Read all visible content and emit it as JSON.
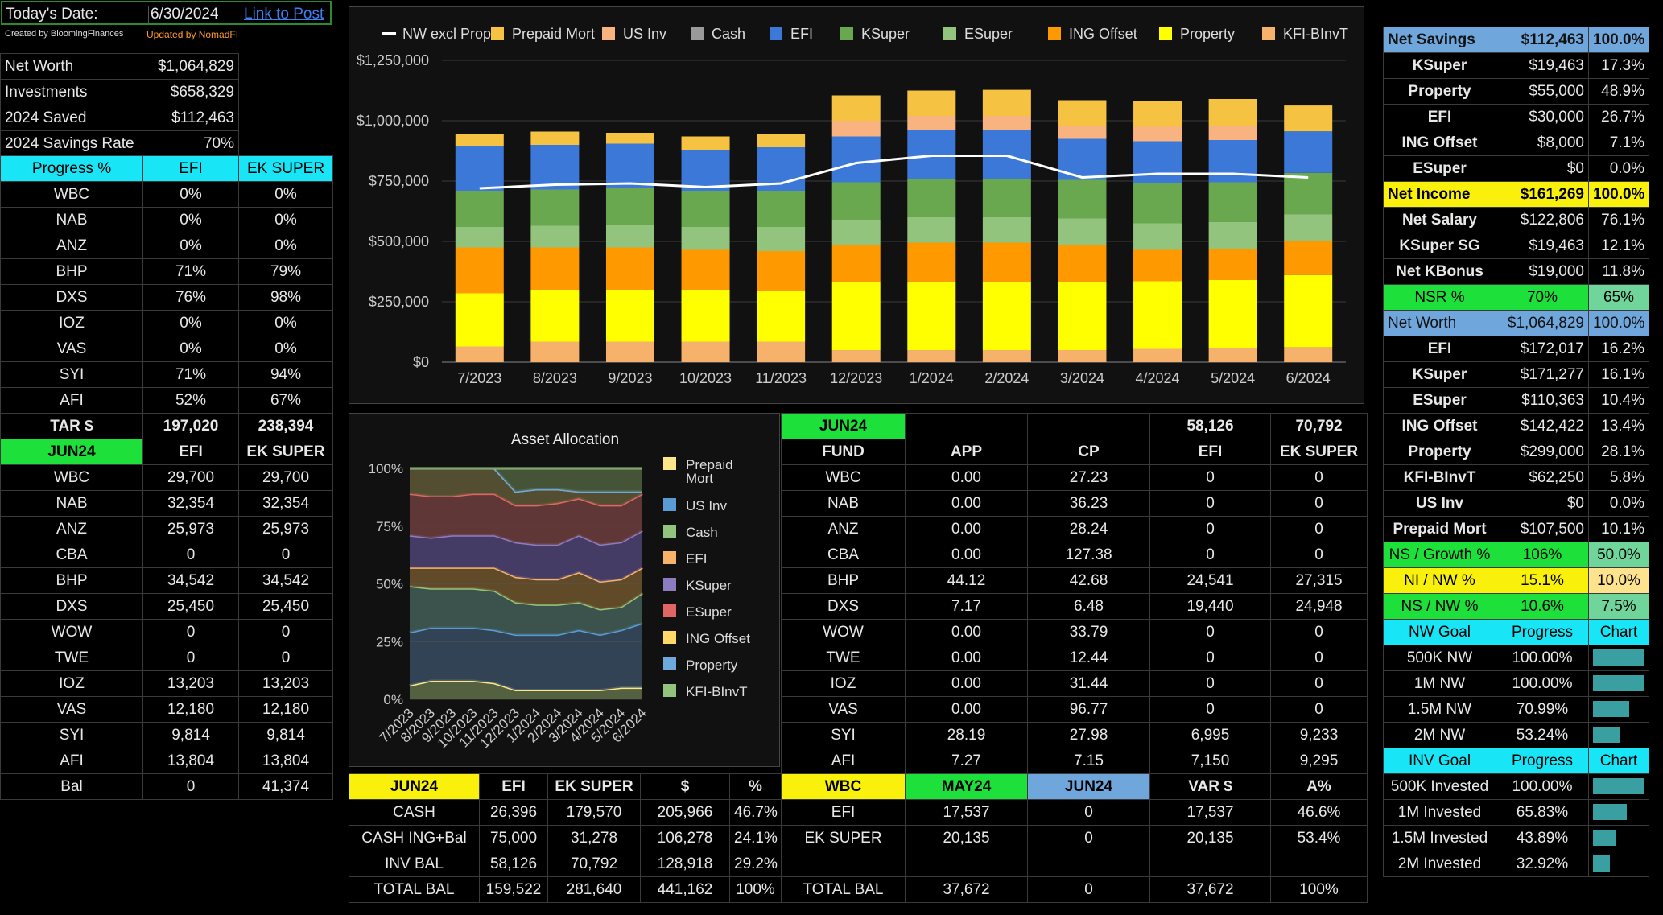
{
  "header": {
    "date_label": "Today's Date:",
    "date_value": "6/30/2024",
    "link": "Link to Post",
    "credit1": "Created by BloomingFinances",
    "credit2": "Updated by NomadFI"
  },
  "summary": [
    {
      "label": "Net Worth",
      "value": "$1,064,829"
    },
    {
      "label": "Investments",
      "value": "$658,329"
    },
    {
      "label": "2024 Saved",
      "value": "$112,463"
    },
    {
      "label": "2024 Savings Rate",
      "value": "70%"
    }
  ],
  "progress": {
    "headers": [
      "Progress %",
      "EFI",
      "EK SUPER"
    ],
    "rows": [
      [
        "WBC",
        "0%",
        "0%"
      ],
      [
        "NAB",
        "0%",
        "0%"
      ],
      [
        "ANZ",
        "0%",
        "0%"
      ],
      [
        "BHP",
        "71%",
        "79%"
      ],
      [
        "DXS",
        "76%",
        "98%"
      ],
      [
        "IOZ",
        "0%",
        "0%"
      ],
      [
        "VAS",
        "0%",
        "0%"
      ],
      [
        "SYI",
        "71%",
        "94%"
      ],
      [
        "AFI",
        "52%",
        "67%"
      ]
    ],
    "tar": [
      "TAR $",
      "197,020",
      "238,394"
    ]
  },
  "holdings": {
    "headers": [
      "JUN24",
      "EFI",
      "EK SUPER"
    ],
    "rows": [
      [
        "WBC",
        "29,700",
        "29,700"
      ],
      [
        "NAB",
        "32,354",
        "32,354"
      ],
      [
        "ANZ",
        "25,973",
        "25,973"
      ],
      [
        "CBA",
        "0",
        "0"
      ],
      [
        "BHP",
        "34,542",
        "34,542"
      ],
      [
        "DXS",
        "25,450",
        "25,450"
      ],
      [
        "WOW",
        "0",
        "0"
      ],
      [
        "TWE",
        "0",
        "0"
      ],
      [
        "IOZ",
        "13,203",
        "13,203"
      ],
      [
        "VAS",
        "12,180",
        "12,180"
      ],
      [
        "SYI",
        "9,814",
        "9,814"
      ],
      [
        "AFI",
        "13,804",
        "13,804"
      ]
    ],
    "bal": [
      "Bal",
      "0",
      "41,374"
    ]
  },
  "chart_data": [
    {
      "type": "bar",
      "stacked": true,
      "categories": [
        "7/2023",
        "8/2023",
        "9/2023",
        "10/2023",
        "11/2023",
        "12/2023",
        "1/2024",
        "2/2024",
        "3/2024",
        "4/2024",
        "5/2024",
        "6/2024"
      ],
      "ylim": [
        0,
        1250000
      ],
      "yticks": [
        "$0",
        "$250,000",
        "$500,000",
        "$750,000",
        "$1,000,000",
        "$1,250,000"
      ],
      "legend": [
        "NW excl Prop",
        "Prepaid Mort",
        "US Inv",
        "Cash",
        "EFI",
        "KSuper",
        "ESuper",
        "ING Offset",
        "Property",
        "KFI-BInvT"
      ],
      "colors": {
        "NW excl Prop": "#ffffff",
        "Prepaid Mort": "#f5c242",
        "US Inv": "#f9b380",
        "Cash": "#9a9a9a",
        "EFI": "#3c78d8",
        "KSuper": "#6aa84f",
        "ESuper": "#93c47d",
        "ING Offset": "#ff9900",
        "Property": "#ffff00",
        "KFI-BInvT": "#f6b26b"
      },
      "series": [
        {
          "name": "KFI-BInvT",
          "values": [
            65000,
            85000,
            85000,
            85000,
            85000,
            50000,
            50000,
            50000,
            50000,
            55000,
            60000,
            62000
          ]
        },
        {
          "name": "Property",
          "values": [
            220000,
            215000,
            215000,
            215000,
            210000,
            280000,
            280000,
            280000,
            280000,
            280000,
            280000,
            299000
          ]
        },
        {
          "name": "ING Offset",
          "values": [
            190000,
            175000,
            175000,
            165000,
            165000,
            155000,
            165000,
            165000,
            155000,
            130000,
            130000,
            142000
          ]
        },
        {
          "name": "ESuper",
          "values": [
            85000,
            90000,
            95000,
            95000,
            100000,
            105000,
            105000,
            105000,
            110000,
            110000,
            110000,
            110000
          ]
        },
        {
          "name": "KSuper",
          "values": [
            150000,
            150000,
            150000,
            150000,
            150000,
            155000,
            160000,
            160000,
            160000,
            165000,
            165000,
            171000
          ]
        },
        {
          "name": "EFI",
          "values": [
            185000,
            185000,
            185000,
            170000,
            180000,
            190000,
            200000,
            200000,
            170000,
            175000,
            175000,
            172000
          ]
        },
        {
          "name": "Cash",
          "values": [
            0,
            0,
            0,
            0,
            0,
            0,
            0,
            0,
            0,
            0,
            0,
            0
          ]
        },
        {
          "name": "US Inv",
          "values": [
            0,
            0,
            0,
            0,
            0,
            65000,
            60000,
            60000,
            55000,
            60000,
            60000,
            0
          ]
        },
        {
          "name": "Prepaid Mort",
          "values": [
            50000,
            55000,
            45000,
            55000,
            55000,
            105000,
            105000,
            108000,
            105000,
            105000,
            110000,
            107000
          ]
        }
      ],
      "line": {
        "name": "NW excl Prop",
        "values": [
          720000,
          735000,
          740000,
          725000,
          740000,
          825000,
          855000,
          855000,
          765000,
          780000,
          780000,
          765000
        ]
      }
    },
    {
      "type": "area",
      "title": "Asset Allocation",
      "categories": [
        "7/2023",
        "8/2023",
        "9/2023",
        "10/2023",
        "11/2023",
        "12/2023",
        "1/2024",
        "2/2024",
        "3/2024",
        "4/2024",
        "5/2024",
        "6/2024"
      ],
      "yticks": [
        "0%",
        "25%",
        "50%",
        "75%",
        "100%"
      ],
      "legend": [
        "Prepaid Mort",
        "US Inv",
        "Cash",
        "EFI",
        "KSuper",
        "ESuper",
        "ING Offset",
        "Property",
        "KFI-BInvT"
      ],
      "colors": {
        "Prepaid Mort": "#fde68a",
        "US Inv": "#5b9bd5",
        "Cash": "#93c47d",
        "EFI": "#f6b26b",
        "KSuper": "#8e7cc3",
        "ESuper": "#e06666",
        "ING Offset": "#ffd966",
        "Property": "#6fa8dc",
        "KFI-BInvT": "#93c47d"
      },
      "cumulative_percent": [
        [
          6,
          8,
          8,
          8,
          7,
          4,
          4,
          4,
          4,
          4,
          5,
          5
        ],
        [
          29,
          31,
          31,
          31,
          30,
          28,
          28,
          28,
          30,
          28,
          30,
          33
        ],
        [
          49,
          48,
          48,
          48,
          47,
          42,
          41,
          41,
          42,
          39,
          40,
          46
        ],
        [
          57,
          57,
          57,
          57,
          57,
          53,
          52,
          52,
          55,
          51,
          52,
          57
        ],
        [
          71,
          70,
          71,
          71,
          71,
          68,
          67,
          67,
          71,
          67,
          68,
          73
        ],
        [
          89,
          88,
          88,
          89,
          89,
          84,
          84,
          85,
          87,
          84,
          84,
          89
        ],
        [
          100,
          100,
          100,
          100,
          100,
          90,
          91,
          91,
          90,
          90,
          90,
          90
        ],
        [
          100,
          100,
          100,
          100,
          100,
          90,
          91,
          91,
          90,
          90,
          90,
          90
        ],
        [
          100,
          100,
          100,
          100,
          100,
          100,
          100,
          100,
          100,
          100,
          100,
          100
        ]
      ]
    }
  ],
  "fund_table": {
    "top": [
      "JUN24",
      "",
      "",
      "58,126",
      "70,792"
    ],
    "headers": [
      "FUND",
      "APP",
      "CP",
      "EFI",
      "EK SUPER"
    ],
    "rows": [
      [
        "WBC",
        "0.00",
        "27.23",
        "0",
        "0"
      ],
      [
        "NAB",
        "0.00",
        "36.23",
        "0",
        "0"
      ],
      [
        "ANZ",
        "0.00",
        "28.24",
        "0",
        "0"
      ],
      [
        "CBA",
        "0.00",
        "127.38",
        "0",
        "0"
      ],
      [
        "BHP",
        "44.12",
        "42.68",
        "24,541",
        "27,315"
      ],
      [
        "DXS",
        "7.17",
        "6.48",
        "19,440",
        "24,948"
      ],
      [
        "WOW",
        "0.00",
        "33.79",
        "0",
        "0"
      ],
      [
        "TWE",
        "0.00",
        "12.44",
        "0",
        "0"
      ],
      [
        "IOZ",
        "0.00",
        "31.44",
        "0",
        "0"
      ],
      [
        "VAS",
        "0.00",
        "96.77",
        "0",
        "0"
      ],
      [
        "SYI",
        "28.19",
        "27.98",
        "6,995",
        "9,233"
      ],
      [
        "AFI",
        "7.27",
        "7.15",
        "7,150",
        "9,295"
      ]
    ]
  },
  "cash_table": {
    "headers": [
      "JUN24",
      "EFI",
      "EK SUPER",
      "$",
      "%"
    ],
    "rows": [
      [
        "CASH",
        "26,396",
        "179,570",
        "205,966",
        "46.7%"
      ],
      [
        "CASH ING+Bal",
        "75,000",
        "31,278",
        "106,278",
        "24.1%"
      ],
      [
        "INV BAL",
        "58,126",
        "70,792",
        "128,918",
        "29.2%"
      ],
      [
        "TOTAL BAL",
        "159,522",
        "281,640",
        "441,162",
        "100%"
      ]
    ]
  },
  "wbc_table": {
    "headers": [
      "WBC",
      "MAY24",
      "JUN24",
      "VAR $",
      "A%"
    ],
    "rows": [
      [
        "EFI",
        "17,537",
        "0",
        "17,537",
        "46.6%"
      ],
      [
        "EK SUPER",
        "20,135",
        "0",
        "20,135",
        "53.4%"
      ],
      [
        "",
        "",
        "",
        "",
        ""
      ],
      [
        "TOTAL BAL",
        "37,672",
        "0",
        "37,672",
        "100%"
      ]
    ]
  },
  "right": {
    "net_savings": [
      "Net Savings",
      "$112,463",
      "100.0%"
    ],
    "savings_rows": [
      [
        "KSuper",
        "$19,463",
        "17.3%"
      ],
      [
        "Property",
        "$55,000",
        "48.9%"
      ],
      [
        "EFI",
        "$30,000",
        "26.7%"
      ],
      [
        "ING Offset",
        "$8,000",
        "7.1%"
      ],
      [
        "ESuper",
        "$0",
        "0.0%"
      ]
    ],
    "net_income": [
      "Net Income",
      "$161,269",
      "100.0%"
    ],
    "income_rows": [
      [
        "Net Salary",
        "$122,806",
        "76.1%"
      ],
      [
        "KSuper SG",
        "$19,463",
        "12.1%"
      ],
      [
        "Net KBonus",
        "$19,000",
        "11.8%"
      ]
    ],
    "nsr": [
      "NSR %",
      "70%",
      "65%"
    ],
    "net_worth": [
      "Net Worth",
      "$1,064,829",
      "100.0%"
    ],
    "worth_rows": [
      [
        "EFI",
        "$172,017",
        "16.2%"
      ],
      [
        "KSuper",
        "$171,277",
        "16.1%"
      ],
      [
        "ESuper",
        "$110,363",
        "10.4%"
      ],
      [
        "ING Offset",
        "$142,422",
        "13.4%"
      ],
      [
        "Property",
        "$299,000",
        "28.1%"
      ],
      [
        "KFI-BInvT",
        "$62,250",
        "5.8%"
      ],
      [
        "US Inv",
        "$0",
        "0.0%"
      ],
      [
        "Prepaid Mort",
        "$107,500",
        "10.1%"
      ]
    ],
    "ratios": [
      [
        "NS / Growth %",
        "106%",
        "50.0%"
      ],
      [
        "NI / NW %",
        "15.1%",
        "10.0%"
      ],
      [
        "NS / NW %",
        "10.6%",
        "7.5%"
      ]
    ],
    "nw_goal_header": [
      "NW Goal",
      "Progress",
      "Chart"
    ],
    "nw_goals": [
      {
        "label": "500K NW",
        "progress": "100.00%",
        "pct": 1.0
      },
      {
        "label": "1M NW",
        "progress": "100.00%",
        "pct": 1.0
      },
      {
        "label": "1.5M NW",
        "progress": "70.99%",
        "pct": 0.7099
      },
      {
        "label": "2M NW",
        "progress": "53.24%",
        "pct": 0.5324
      }
    ],
    "inv_goal_header": [
      "INV Goal",
      "Progress",
      "Chart"
    ],
    "inv_goals": [
      {
        "label": "500K Invested",
        "progress": "100.00%",
        "pct": 1.0
      },
      {
        "label": "1M Invested",
        "progress": "65.83%",
        "pct": 0.6583
      },
      {
        "label": "1.5M Invested",
        "progress": "43.89%",
        "pct": 0.4389
      },
      {
        "label": "2M Invested",
        "progress": "32.92%",
        "pct": 0.3292
      }
    ]
  }
}
